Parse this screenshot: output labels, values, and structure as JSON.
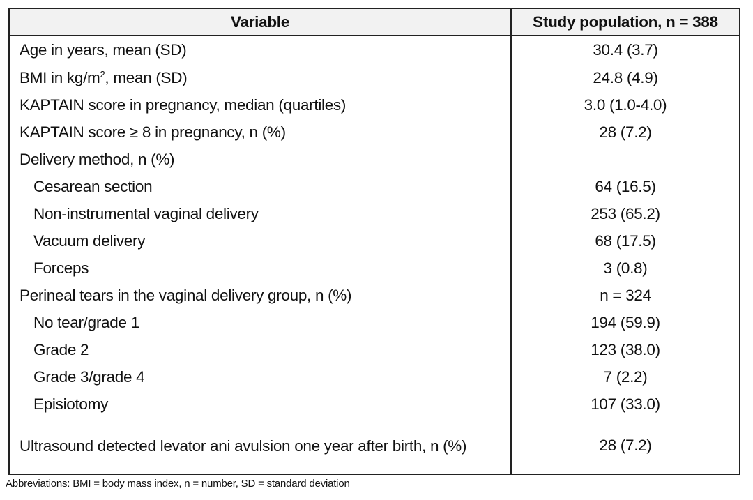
{
  "table": {
    "header": {
      "variable": "Variable",
      "population": "Study population, n = 388"
    },
    "rows": [
      {
        "label": "Age in years, mean (SD)",
        "value": "30.4 (3.7)"
      },
      {
        "label_pre": "BMI in kg/m",
        "label_sup": "2",
        "label_post": ", mean (SD)",
        "value": "24.8 (4.9)"
      },
      {
        "label": "KAPTAIN score in pregnancy, median (quartiles)",
        "value": "3.0 (1.0-4.0)"
      },
      {
        "label": "KAPTAIN score ≥ 8 in pregnancy, n (%)",
        "value": "28 (7.2)"
      },
      {
        "label": "Delivery method, n (%)",
        "value": ""
      },
      {
        "label": "Cesarean section",
        "value": "64 (16.5)"
      },
      {
        "label": "Non-instrumental vaginal delivery",
        "value": "253 (65.2)"
      },
      {
        "label": "Vacuum delivery",
        "value": "68 (17.5)"
      },
      {
        "label": "Forceps",
        "value": "3 (0.8)"
      },
      {
        "label": "Perineal tears in the vaginal delivery group, n (%)",
        "value": "n = 324"
      },
      {
        "label": "No tear/grade 1",
        "value": "194 (59.9)"
      },
      {
        "label": "Grade 2",
        "value": "123 (38.0)"
      },
      {
        "label": "Grade 3/grade 4",
        "value": "7 (2.2)"
      },
      {
        "label": "Episiotomy",
        "value": "107 (33.0)"
      },
      {
        "label": "Ultrasound detected levator ani avulsion one year after birth, n (%)",
        "value": "28 (7.2)"
      }
    ]
  },
  "footnote": "Abbreviations: BMI = body mass index, n = number, SD = standard deviation"
}
